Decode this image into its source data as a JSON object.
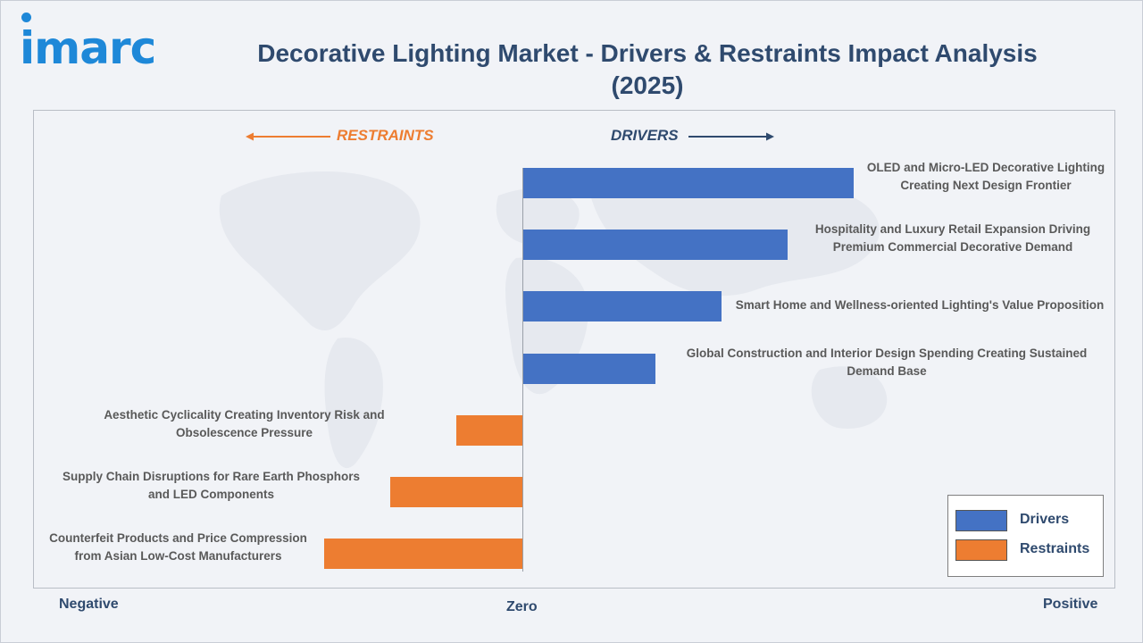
{
  "header": {
    "logo_text": "imarc",
    "title_line1": "Decorative Lighting Market - Drivers & Restraints Impact Analysis",
    "title_line2": "(2025)"
  },
  "colors": {
    "drivers": "#4472c4",
    "restraints": "#ed7d31",
    "title": "#2f4a6e",
    "logo": "#1e88d8"
  },
  "direction_labels": {
    "restraints": "RESTRAINTS",
    "drivers": "DRIVERS"
  },
  "axis_ends": {
    "negative": "Negative",
    "zero": "Zero",
    "positive": "Positive"
  },
  "chart_data": {
    "type": "bar",
    "orientation": "horizontal",
    "title": "Decorative Lighting Market - Drivers & Restraints Impact Analysis (2025)",
    "xlim": [
      -3,
      5
    ],
    "grid": false,
    "legend_position": "bottom-right",
    "categories": [
      "OLED and Micro-LED Decorative Lighting Creating Next Design Frontier",
      "Hospitality and Luxury Retail Expansion Driving Premium Commercial Decorative Demand",
      "Smart Home and Wellness-oriented Lighting's Value Proposition",
      "Global Construction and Interior Design Spending Creating Sustained Demand Base",
      "Aesthetic Cyclicality Creating Inventory Risk and Obsolescence Pressure",
      "Supply Chain Disruptions for Rare Earth Phosphors and LED Components",
      "Counterfeit Products and Price Compression from Asian Low-Cost Manufacturers"
    ],
    "label_lines": [
      [
        "OLED and Micro-LED Decorative Lighting",
        "Creating Next Design Frontier"
      ],
      [
        "Hospitality and Luxury Retail Expansion Driving",
        "Premium Commercial Decorative Demand"
      ],
      [
        "Smart Home and Wellness-oriented Lighting's Value Proposition"
      ],
      [
        "Global Construction and Interior Design Spending Creating Sustained",
        "Demand Base"
      ],
      [
        "Aesthetic Cyclicality Creating Inventory Risk and",
        "Obsolescence Pressure"
      ],
      [
        "Supply Chain Disruptions for Rare Earth Phosphors",
        "and LED Components"
      ],
      [
        "Counterfeit Products and Price Compression",
        "from Asian Low-Cost Manufacturers"
      ]
    ],
    "values": [
      5,
      4,
      3,
      2,
      -1,
      -2,
      -3
    ],
    "series": [
      {
        "name": "Drivers",
        "values": [
          5,
          4,
          3,
          2,
          null,
          null,
          null
        ]
      },
      {
        "name": "Restraints",
        "values": [
          null,
          null,
          null,
          null,
          -1,
          -2,
          -3
        ]
      }
    ]
  }
}
